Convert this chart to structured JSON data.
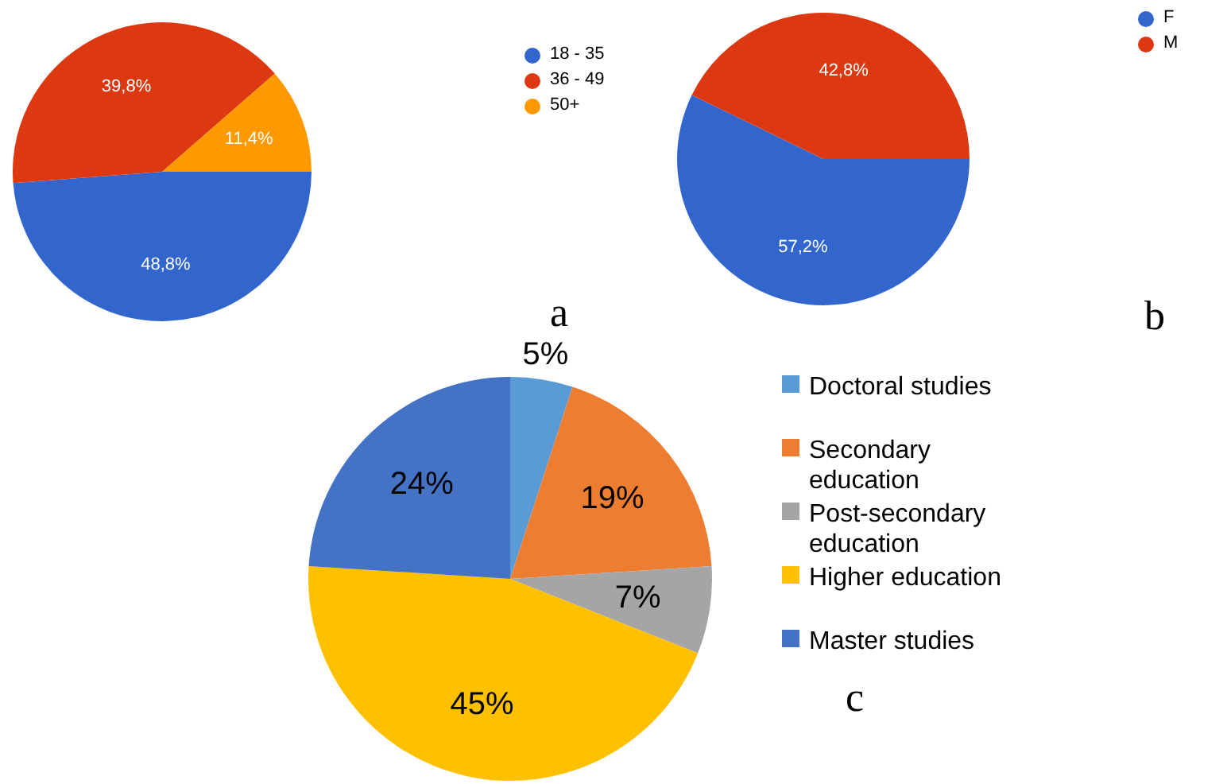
{
  "chart_data": [
    {
      "type": "pie",
      "categories": [
        "18 - 35",
        "36 - 49",
        "50+"
      ],
      "values": [
        48.8,
        39.8,
        11.4
      ],
      "colors": [
        "#3366cc",
        "#dc3912",
        "#ff9900"
      ],
      "value_labels": [
        "48,8%",
        "39,8%",
        "11,4%"
      ],
      "legend": "right",
      "annotations": [
        "a"
      ]
    },
    {
      "type": "pie",
      "categories": [
        "F",
        "M"
      ],
      "values": [
        57.2,
        42.8
      ],
      "colors": [
        "#3366cc",
        "#dc3912"
      ],
      "value_labels": [
        "57,2%",
        "42,8%"
      ],
      "legend": "top right",
      "annotations": [
        "b"
      ]
    },
    {
      "type": "pie",
      "categories": [
        "Doctoral studies",
        "Secondary education",
        "Post-secondary education",
        "Higher education",
        "Master studies"
      ],
      "values": [
        5,
        19,
        7,
        45,
        24
      ],
      "colors": [
        "#5b9bd5",
        "#ed7d31",
        "#a5a5a5",
        "#ffc000",
        "#4472c4"
      ],
      "value_labels": [
        "5%",
        "19%",
        "7%",
        "45%",
        "24%"
      ],
      "legend": "right",
      "annotations": [
        "c"
      ]
    }
  ]
}
